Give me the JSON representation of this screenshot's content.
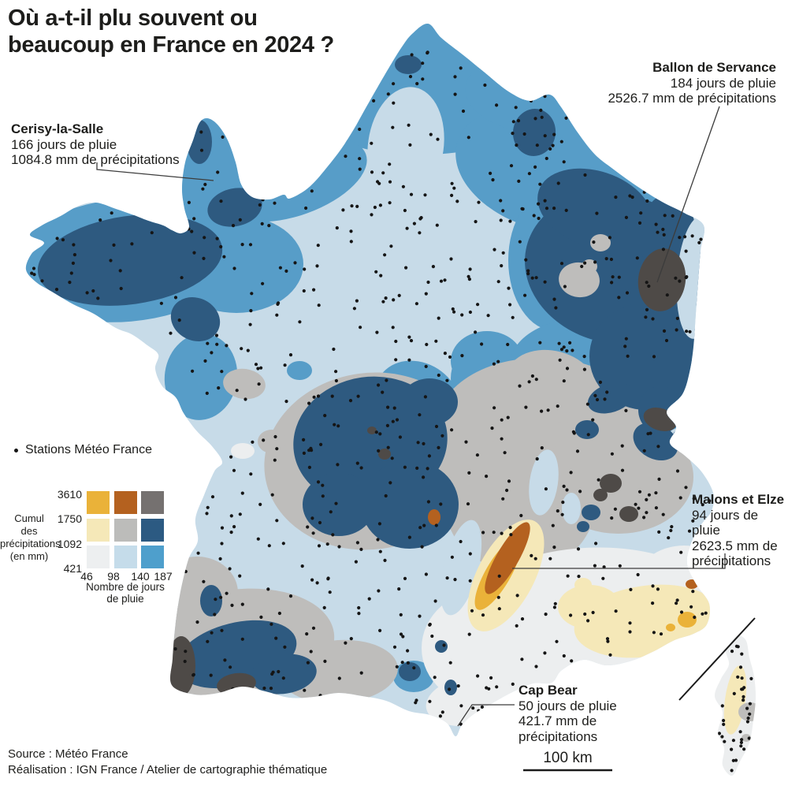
{
  "title": {
    "lines": [
      "Où a-t-il plu souvent ou",
      "beaucoup en France en 2024 ?"
    ]
  },
  "stations_legend": {
    "label": "Stations Météo France"
  },
  "bivariate_legend": {
    "y_axis_label_lines": [
      "Cumul",
      "des",
      "précipitations",
      "(en mm)"
    ],
    "x_axis_label_lines": [
      "Nombre de jours",
      "de pluie"
    ],
    "y_ticks": [
      "3610",
      "1750",
      "1092",
      "421"
    ],
    "x_ticks": [
      "46",
      "98",
      "140",
      "187"
    ],
    "cells": [
      [
        "#eab239",
        "#b4611f",
        "#757170"
      ],
      [
        "#f5e8b8",
        "#bcbcba",
        "#2c5a82"
      ],
      [
        "#edeff0",
        "#c5dcea",
        "#4e9fcc"
      ]
    ]
  },
  "annotations": {
    "cerisy": {
      "name": "Cerisy-la-Salle",
      "lines": [
        "166 jours de pluie",
        "1084.8 mm de précipitations"
      ]
    },
    "ballon": {
      "name": "Ballon de Servance",
      "lines": [
        "184 jours de pluie",
        "2526.7 mm de précipitations"
      ]
    },
    "malons": {
      "name": "Malons et Elze",
      "lines": [
        "94 jours de pluie",
        "2623.5 mm de",
        "précipitations"
      ]
    },
    "capbear": {
      "name": "Cap Bear",
      "lines": [
        "50 jours de pluie",
        "421.7 mm de",
        "précipitations"
      ]
    }
  },
  "source": {
    "lines": [
      "Source : Météo France",
      "Réalisation : IGN France / Atelier de cartographie thématique"
    ]
  },
  "scale_bar": {
    "label": "100 km"
  },
  "map_colors": {
    "base_light_blue": "#c7dbe8",
    "medium_blue": "#579dc8",
    "dark_blue": "#2e5a80",
    "gray": "#bebdbb",
    "pale_gray": "#eceeef",
    "pale_yellow": "#f5e8b8",
    "gold": "#eab239",
    "rust": "#b4611f",
    "charcoal": "#4e4a47",
    "station_dot": "#151515"
  }
}
